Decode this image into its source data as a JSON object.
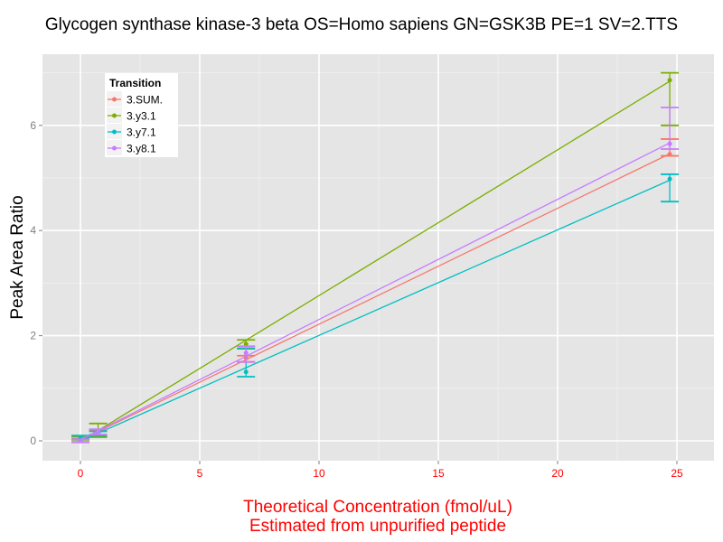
{
  "chart_data": {
    "type": "line",
    "title": "Glycogen synthase kinase-3 beta OS=Homo sapiens GN=GSK3B PE=1 SV=2.TTS",
    "xlabel": "Theoretical Concentration (fmol/uL)",
    "xlabel2": "Estimated from unpurified peptide",
    "ylabel": "Peak Area Ratio",
    "xlim": [
      -1.6,
      26.5
    ],
    "ylim": [
      -0.4,
      7.4
    ],
    "xticks": [
      "0",
      "5",
      "10",
      "15",
      "20",
      "25"
    ],
    "xtick_values": [
      0,
      5,
      10,
      15,
      20,
      25
    ],
    "yticks": [
      "0",
      "2",
      "4",
      "6"
    ],
    "ytick_values": [
      0,
      2,
      4,
      6
    ],
    "grid": true,
    "legend": {
      "title": "Transition",
      "placement": "top-left"
    },
    "x": [
      0,
      0.74,
      6.94,
      24.7
    ],
    "series": [
      {
        "name": "3.SUM.",
        "color": "#F8766D",
        "values": [
          0.01,
          0.15,
          1.58,
          5.45
        ],
        "err_low": [
          -0.02,
          0.1,
          1.5,
          5.42
        ],
        "err_high": [
          0.04,
          0.2,
          1.62,
          5.74
        ]
      },
      {
        "name": "3.y3.1",
        "color": "#7CAE00",
        "values": [
          0.05,
          0.19,
          1.84,
          6.86
        ],
        "err_low": [
          0.02,
          0.07,
          1.76,
          6.0
        ],
        "err_high": [
          0.08,
          0.33,
          1.92,
          7.0
        ]
      },
      {
        "name": "3.y7.1",
        "color": "#00BFC4",
        "values": [
          0.06,
          0.14,
          1.31,
          4.98
        ],
        "err_low": [
          0.03,
          0.1,
          1.22,
          4.55
        ],
        "err_high": [
          0.1,
          0.18,
          1.75,
          5.07
        ]
      },
      {
        "name": "3.y8.1",
        "color": "#C77CFF",
        "values": [
          0.0,
          0.17,
          1.67,
          5.65
        ],
        "err_low": [
          -0.03,
          0.12,
          1.5,
          5.55
        ],
        "err_high": [
          0.03,
          0.22,
          1.8,
          6.34
        ]
      }
    ]
  }
}
